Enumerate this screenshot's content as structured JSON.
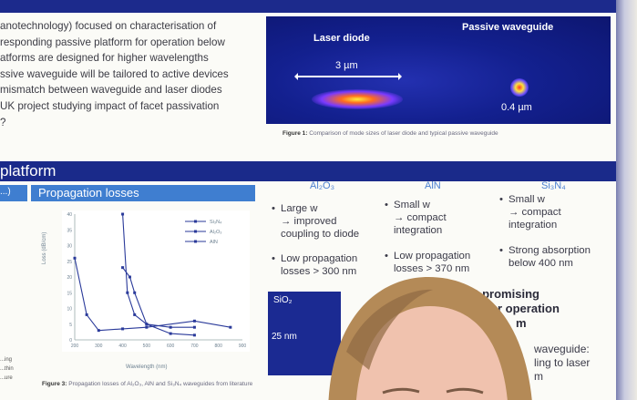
{
  "intro_lines": [
    "anotechnology) focused on characterisation of",
    "responding passive platform for operation below",
    "atforms are designed for higher wavelengths",
    "ssive waveguide will be tailored to active devices",
    "mismatch between waveguide and laser diodes",
    "UK project studying impact of facet passivation",
    "?"
  ],
  "figure1": {
    "laser_label": "Laser diode",
    "passive_label": "Passive waveguide",
    "laser_width": "3 µm",
    "passive_width": "0.4 µm",
    "caption_bold": "Figure 1:",
    "caption": "Comparison of mode sizes of laser diode and typical passive waveguide"
  },
  "section_title": "platform",
  "subsection_left": "...)",
  "subsection_title": "Propagation losses",
  "chart_data": {
    "type": "line",
    "xlabel": "Wavelength (nm)",
    "ylabel": "Loss (dB/cm)",
    "xlim": [
      200,
      900
    ],
    "ylim": [
      0,
      40
    ],
    "x_ticks": [
      "200",
      "300",
      "400",
      "500",
      "600",
      "700",
      "800",
      "900"
    ],
    "y_ticks": [
      "40",
      "35",
      "30",
      "25",
      "20",
      "15",
      "10",
      "5",
      "0"
    ],
    "series": [
      {
        "name": "Si3N4",
        "points": [
          [
            400,
            40
          ],
          [
            420,
            15
          ],
          [
            450,
            8
          ],
          [
            500,
            5
          ],
          [
            600,
            4
          ],
          [
            700,
            4
          ]
        ]
      },
      {
        "name": "Al2O3",
        "points": [
          [
            200,
            26
          ],
          [
            250,
            8
          ],
          [
            300,
            3
          ],
          [
            400,
            3.5
          ],
          [
            500,
            4
          ],
          [
            700,
            6
          ],
          [
            850,
            4
          ]
        ]
      },
      {
        "name": "AlN",
        "points": [
          [
            400,
            23
          ],
          [
            430,
            20
          ],
          [
            450,
            15
          ],
          [
            500,
            5
          ],
          [
            600,
            2
          ],
          [
            700,
            1.5
          ]
        ]
      }
    ],
    "legend": [
      "Si₃N₄",
      "Al₂O₃",
      "AlN"
    ],
    "grid": false,
    "legend_position": "top-right"
  },
  "figure3": {
    "caption_bold": "Figure 3:",
    "caption": "Propagation losses of Al₂O₃, AlN and Si₃N₄ waveguides from literature"
  },
  "left_snippet": [
    "...ing",
    "...thin",
    "...ure"
  ],
  "columns": [
    {
      "head": "Al₂O₃",
      "bullets": [
        [
          "Large w",
          "→ improved",
          "coupling to diode"
        ],
        [
          "Low propagation",
          "losses > 300 nm"
        ]
      ]
    },
    {
      "head": "AlN",
      "bullets": [
        [
          "Small w",
          "→ compact",
          "integration"
        ],
        [
          "Low propagation",
          "losses > 370 nm"
        ]
      ]
    },
    {
      "head": "Si₃N₄",
      "bullets": [
        [
          "Small w",
          "→ compact",
          "integration"
        ],
        [
          "Strong absorption",
          "below 400 nm"
        ]
      ]
    }
  ],
  "box": {
    "label1": "SiO₂",
    "label2": "25 nm"
  },
  "most_promising": [
    "ost promising",
    "r operation",
    "m"
  ],
  "right_bottom": [
    "waveguide:",
    "ling to laser",
    "m"
  ]
}
